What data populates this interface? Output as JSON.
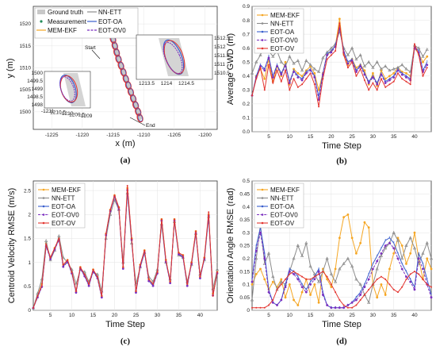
{
  "colors": {
    "mem": "#f5a623",
    "nn": "#8c8c8c",
    "oa": "#3a5fcd",
    "ov0": "#7b2fbf",
    "ov": "#e3342f",
    "gt": "#c8c8c8",
    "meas": "#228b57"
  },
  "chart_data": [
    {
      "type": "scatter",
      "caption": "(a)",
      "xlabel": "x (m)",
      "ylabel": "y (m)",
      "xlim": [
        -1228,
        -1198
      ],
      "ylim": [
        1496,
        1524
      ],
      "xticks": [
        "-1225",
        "-1220",
        "-1215",
        "-1210",
        "-1205",
        "-1200"
      ],
      "yticks": [
        "1500",
        "1505",
        "1510",
        "1515",
        "1520"
      ],
      "legend": [
        "Ground truth",
        "Measurement",
        "MEM-EKF",
        "NN-ETT",
        "EOT-OA",
        "EOT-OV0",
        "EOT-OV"
      ],
      "annotations": [
        "Start",
        "End"
      ],
      "track": [
        [
          -1216.4,
          1522.5
        ],
        [
          -1215.9,
          1521.0
        ],
        [
          -1215.6,
          1519.5
        ],
        [
          -1215.3,
          1518.0
        ],
        [
          -1215.0,
          1516.5
        ],
        [
          -1214.7,
          1515.0
        ],
        [
          -1214.4,
          1513.5
        ],
        [
          -1214.1,
          1512.0
        ],
        [
          -1213.7,
          1510.5
        ],
        [
          -1213.3,
          1509.0
        ],
        [
          -1212.9,
          1507.5
        ],
        [
          -1212.5,
          1506.0
        ],
        [
          -1212.1,
          1504.5
        ],
        [
          -1211.7,
          1503.0
        ],
        [
          -1211.3,
          1501.5
        ],
        [
          -1210.9,
          1500.0
        ],
        [
          -1210.6,
          1498.6
        ]
      ],
      "inset_top": {
        "xticks": [
          "1213.5",
          "1214",
          "1214.5"
        ],
        "yticks": [
          "1510.5",
          "1511",
          "1511.5",
          "1512",
          "1512.5"
        ]
      },
      "inset_left": {
        "xticks": [
          "-1211",
          "-1210.5",
          "-1210",
          "-1209.5",
          "-1209"
        ],
        "yticks": [
          "1498",
          "1498.5",
          "1499",
          "1499.5",
          "1500"
        ]
      }
    },
    {
      "type": "line",
      "caption": "(b)",
      "xlabel": "Time Step",
      "ylabel": "Average GWD (m)",
      "xlim": [
        1,
        44
      ],
      "ylim": [
        0,
        0.9
      ],
      "xticks": [
        5,
        10,
        15,
        20,
        25,
        30,
        35,
        40
      ],
      "yticks": [
        0,
        0.1,
        0.2,
        0.3,
        0.4,
        0.5,
        0.6,
        0.7,
        0.8,
        0.9
      ],
      "legend_position": "top-left",
      "series": [
        {
          "name": "MEM-EKF",
          "values": [
            0.26,
            0.4,
            0.45,
            0.38,
            0.52,
            0.36,
            0.47,
            0.4,
            0.5,
            0.34,
            0.45,
            0.42,
            0.4,
            0.44,
            0.47,
            0.42,
            0.3,
            0.42,
            0.55,
            0.58,
            0.62,
            0.81,
            0.56,
            0.48,
            0.52,
            0.46,
            0.48,
            0.44,
            0.34,
            0.42,
            0.33,
            0.44,
            0.38,
            0.4,
            0.42,
            0.46,
            0.43,
            0.42,
            0.4,
            0.6,
            0.56,
            0.5,
            0.54
          ]
        },
        {
          "name": "NN-ETT",
          "values": [
            0.42,
            0.5,
            0.55,
            0.62,
            0.58,
            0.54,
            0.58,
            0.5,
            0.47,
            0.54,
            0.49,
            0.51,
            0.44,
            0.51,
            0.48,
            0.45,
            0.43,
            0.53,
            0.57,
            0.6,
            0.63,
            0.72,
            0.6,
            0.55,
            0.6,
            0.52,
            0.55,
            0.47,
            0.5,
            0.46,
            0.5,
            0.45,
            0.47,
            0.44,
            0.45,
            0.46,
            0.48,
            0.45,
            0.43,
            0.62,
            0.6,
            0.54,
            0.59
          ]
        },
        {
          "name": "EOT-OA",
          "values": [
            0.26,
            0.4,
            0.48,
            0.45,
            0.54,
            0.4,
            0.48,
            0.42,
            0.48,
            0.36,
            0.44,
            0.4,
            0.38,
            0.43,
            0.45,
            0.4,
            0.25,
            0.42,
            0.56,
            0.58,
            0.62,
            0.75,
            0.58,
            0.5,
            0.52,
            0.44,
            0.48,
            0.42,
            0.36,
            0.4,
            0.35,
            0.42,
            0.36,
            0.38,
            0.4,
            0.45,
            0.42,
            0.4,
            0.38,
            0.61,
            0.58,
            0.44,
            0.5
          ]
        },
        {
          "name": "EOT-OV0",
          "values": [
            0.26,
            0.39,
            0.47,
            0.44,
            0.53,
            0.39,
            0.47,
            0.41,
            0.47,
            0.35,
            0.43,
            0.39,
            0.37,
            0.42,
            0.44,
            0.39,
            0.23,
            0.41,
            0.55,
            0.57,
            0.61,
            0.74,
            0.57,
            0.49,
            0.51,
            0.43,
            0.47,
            0.41,
            0.35,
            0.39,
            0.34,
            0.41,
            0.35,
            0.37,
            0.39,
            0.44,
            0.41,
            0.39,
            0.37,
            0.6,
            0.57,
            0.43,
            0.48
          ]
        },
        {
          "name": "EOT-OV",
          "values": [
            0.26,
            0.38,
            0.46,
            0.3,
            0.48,
            0.35,
            0.44,
            0.36,
            0.44,
            0.3,
            0.38,
            0.32,
            0.34,
            0.38,
            0.42,
            0.34,
            0.18,
            0.38,
            0.52,
            0.55,
            0.58,
            0.78,
            0.55,
            0.46,
            0.5,
            0.4,
            0.45,
            0.37,
            0.3,
            0.35,
            0.3,
            0.38,
            0.32,
            0.34,
            0.36,
            0.42,
            0.38,
            0.36,
            0.34,
            0.63,
            0.55,
            0.4,
            0.46
          ]
        }
      ]
    },
    {
      "type": "line",
      "caption": "(c)",
      "xlabel": "Time Step",
      "ylabel": "Centroid Velocity RMSE (m/s)",
      "xlim": [
        1,
        44
      ],
      "ylim": [
        0,
        2.7
      ],
      "xticks": [
        5,
        10,
        15,
        20,
        25,
        30,
        35,
        40
      ],
      "yticks": [
        0,
        0.5,
        1,
        1.5,
        2,
        2.5
      ],
      "legend_position": "top-left",
      "series": [
        {
          "name": "MEM-EKF",
          "values": [
            0.05,
            0.3,
            0.55,
            1.4,
            1.1,
            1.3,
            1.5,
            0.95,
            1.05,
            0.8,
            0.4,
            0.9,
            0.75,
            0.55,
            0.85,
            0.7,
            0.3,
            1.6,
            2.1,
            2.4,
            2.15,
            0.9,
            2.55,
            1.5,
            0.4,
            0.95,
            1.25,
            0.65,
            0.55,
            0.8,
            1.9,
            1.05,
            0.6,
            1.9,
            1.2,
            1.15,
            0.55,
            1.0,
            1.65,
            0.7,
            1.1,
            2.0,
            0.35,
            0.8
          ]
        },
        {
          "name": "NN-ETT",
          "values": [
            0.05,
            0.35,
            0.65,
            1.45,
            1.05,
            1.25,
            1.55,
            1.1,
            1.0,
            0.85,
            0.55,
            0.85,
            0.8,
            0.6,
            0.8,
            0.75,
            0.4,
            1.5,
            2.0,
            2.3,
            2.1,
            1.0,
            2.45,
            1.4,
            0.55,
            0.9,
            1.2,
            0.7,
            0.6,
            0.85,
            1.8,
            1.0,
            0.65,
            1.85,
            1.15,
            1.1,
            0.6,
            0.95,
            1.6,
            0.75,
            1.05,
            1.95,
            0.45,
            0.85
          ]
        },
        {
          "name": "EOT-OA",
          "values": [
            0.05,
            0.28,
            0.5,
            1.35,
            1.08,
            1.28,
            1.48,
            0.92,
            1.02,
            0.78,
            0.38,
            0.88,
            0.72,
            0.52,
            0.82,
            0.68,
            0.28,
            1.58,
            2.08,
            2.38,
            2.12,
            0.88,
            2.52,
            1.48,
            0.38,
            0.92,
            1.22,
            0.62,
            0.52,
            0.78,
            1.88,
            1.02,
            0.58,
            1.88,
            1.18,
            1.12,
            0.52,
            0.98,
            1.62,
            0.68,
            1.08,
            1.98,
            0.32,
            0.78
          ]
        },
        {
          "name": "EOT-OV0",
          "values": [
            0.05,
            0.27,
            0.49,
            1.34,
            1.07,
            1.27,
            1.47,
            0.91,
            1.01,
            0.77,
            0.37,
            0.87,
            0.71,
            0.51,
            0.81,
            0.67,
            0.27,
            1.57,
            2.07,
            2.37,
            2.11,
            0.87,
            2.51,
            1.47,
            0.37,
            0.91,
            1.21,
            0.61,
            0.51,
            0.77,
            1.87,
            1.01,
            0.57,
            1.87,
            1.17,
            1.11,
            0.51,
            0.97,
            1.61,
            0.67,
            1.07,
            1.97,
            0.31,
            0.77
          ]
        },
        {
          "name": "EOT-OV",
          "values": [
            0.05,
            0.3,
            0.52,
            1.38,
            1.1,
            1.3,
            1.5,
            0.95,
            1.05,
            0.8,
            0.4,
            0.9,
            0.75,
            0.55,
            0.85,
            0.7,
            0.3,
            1.6,
            2.1,
            2.4,
            2.15,
            0.9,
            2.6,
            1.5,
            0.4,
            0.95,
            1.25,
            0.65,
            0.55,
            0.8,
            1.9,
            1.05,
            0.6,
            1.9,
            1.2,
            1.15,
            0.55,
            1.0,
            1.65,
            0.7,
            1.1,
            2.05,
            0.3,
            0.8
          ]
        }
      ]
    },
    {
      "type": "line",
      "caption": "(d)",
      "xlabel": "Time Step",
      "ylabel": "Orientation Angle RMSE (rad)",
      "xlim": [
        1,
        44
      ],
      "ylim": [
        0,
        0.5
      ],
      "xticks": [
        5,
        10,
        15,
        20,
        25,
        30,
        35,
        40
      ],
      "yticks": [
        0,
        0.05,
        0.1,
        0.15,
        0.2,
        0.25,
        0.3,
        0.35,
        0.4,
        0.45,
        0.5
      ],
      "legend_position": "top-left",
      "series": [
        {
          "name": "MEM-EKF",
          "values": [
            0.1,
            0.14,
            0.16,
            0.12,
            0.08,
            0.11,
            0.09,
            0.12,
            0.05,
            0.1,
            0.04,
            0.02,
            0.07,
            0.12,
            0.06,
            0.1,
            0.03,
            0.16,
            0.12,
            0.09,
            0.16,
            0.28,
            0.36,
            0.37,
            0.28,
            0.22,
            0.26,
            0.34,
            0.32,
            0.1,
            0.05,
            0.1,
            0.06,
            0.16,
            0.22,
            0.28,
            0.25,
            0.18,
            0.22,
            0.3,
            0.2,
            0.12,
            0.2,
            0.16
          ]
        },
        {
          "name": "NN-ETT",
          "values": [
            0.04,
            0.2,
            0.33,
            0.18,
            0.22,
            0.13,
            0.08,
            0.11,
            0.1,
            0.15,
            0.2,
            0.25,
            0.21,
            0.26,
            0.17,
            0.14,
            0.11,
            0.15,
            0.2,
            0.14,
            0.11,
            0.16,
            0.18,
            0.2,
            0.17,
            0.12,
            0.1,
            0.06,
            0.03,
            0.1,
            0.16,
            0.21,
            0.24,
            0.26,
            0.3,
            0.27,
            0.2,
            0.25,
            0.28,
            0.24,
            0.18,
            0.22,
            0.26,
            0.2
          ]
        },
        {
          "name": "EOT-OA",
          "values": [
            0.12,
            0.25,
            0.32,
            0.22,
            0.08,
            0.03,
            0.02,
            0.04,
            0.1,
            0.16,
            0.15,
            0.13,
            0.1,
            0.08,
            0.11,
            0.13,
            0.16,
            0.07,
            0.02,
            0.01,
            0.01,
            0.01,
            0.01,
            0.02,
            0.03,
            0.05,
            0.07,
            0.1,
            0.14,
            0.18,
            0.21,
            0.24,
            0.27,
            0.28,
            0.26,
            0.22,
            0.18,
            0.15,
            0.12,
            0.09,
            0.22,
            0.18,
            0.12,
            0.06
          ]
        },
        {
          "name": "EOT-OV0",
          "values": [
            0.11,
            0.23,
            0.3,
            0.2,
            0.07,
            0.03,
            0.02,
            0.04,
            0.09,
            0.15,
            0.14,
            0.12,
            0.09,
            0.07,
            0.1,
            0.12,
            0.15,
            0.06,
            0.02,
            0.01,
            0.01,
            0.01,
            0.01,
            0.02,
            0.03,
            0.04,
            0.06,
            0.09,
            0.12,
            0.16,
            0.19,
            0.22,
            0.25,
            0.26,
            0.24,
            0.2,
            0.16,
            0.13,
            0.11,
            0.08,
            0.2,
            0.16,
            0.1,
            0.05
          ]
        },
        {
          "name": "EOT-OV",
          "values": [
            0.01,
            0.01,
            0.01,
            0.01,
            0.02,
            0.04,
            0.08,
            0.1,
            0.12,
            0.14,
            0.15,
            0.14,
            0.13,
            0.12,
            0.12,
            0.13,
            0.14,
            0.15,
            0.13,
            0.1,
            0.07,
            0.04,
            0.02,
            0.01,
            0.01,
            0.02,
            0.04,
            0.06,
            0.08,
            0.1,
            0.12,
            0.13,
            0.12,
            0.1,
            0.08,
            0.07,
            0.09,
            0.12,
            0.14,
            0.15,
            0.14,
            0.12,
            0.1,
            0.09
          ]
        }
      ]
    }
  ]
}
